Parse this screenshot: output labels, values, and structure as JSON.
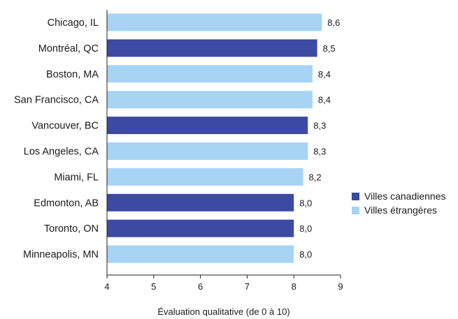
{
  "chart_data": {
    "type": "bar",
    "orientation": "horizontal",
    "categories": [
      "Chicago, IL",
      "Montréal, QC",
      "Boston, MA",
      "San Francisco, CA",
      "Vancouver, BC",
      "Los Angeles, CA",
      "Miami, FL",
      "Edmonton, AB",
      "Toronto, ON",
      "Minneapolis, MN"
    ],
    "values": [
      8.6,
      8.5,
      8.4,
      8.4,
      8.3,
      8.3,
      8.2,
      8.0,
      8.0,
      8.0
    ],
    "value_labels": [
      "8,6",
      "8,5",
      "8,4",
      "8,4",
      "8,3",
      "8,3",
      "8,2",
      "8,0",
      "8,0",
      "8,0"
    ],
    "groups": [
      "foreign",
      "canadian",
      "foreign",
      "foreign",
      "canadian",
      "foreign",
      "foreign",
      "canadian",
      "canadian",
      "foreign"
    ],
    "legend": [
      {
        "key": "canadian",
        "label": "Villes canadiennes",
        "color": "#3c4aa3"
      },
      {
        "key": "foreign",
        "label": "Villes étrangères",
        "color": "#a7d3f5"
      }
    ],
    "legend_position": "right",
    "xlabel": "Évaluation qualitative (de 0 à 10)",
    "ylabel": "",
    "title": "",
    "xlim": [
      4,
      9
    ],
    "xticks": [
      4,
      5,
      6,
      7,
      8,
      9
    ],
    "grid": false
  }
}
